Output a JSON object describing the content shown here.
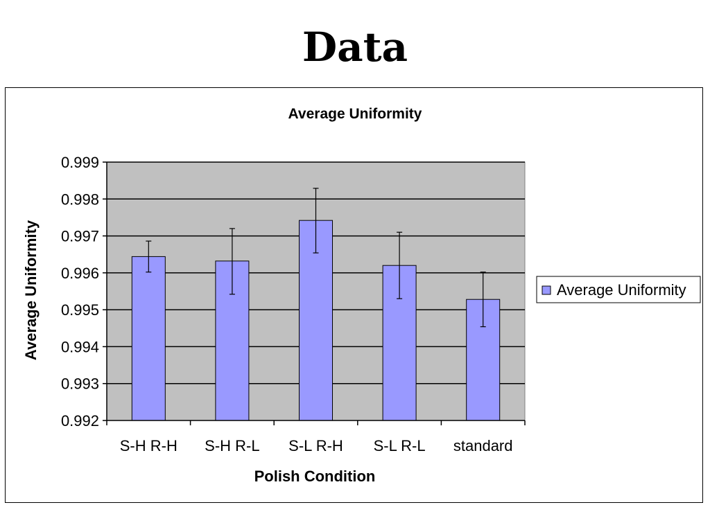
{
  "page": {
    "title": "Data"
  },
  "chart_data": {
    "type": "bar",
    "title": "Average Uniformity",
    "xlabel": "Polish Condition",
    "ylabel": "Average Uniformity",
    "categories": [
      "S-H R-H",
      "S-H R-L",
      "S-L R-H",
      "S-L R-L",
      "standard"
    ],
    "series": [
      {
        "name": "Average Uniformity",
        "values": [
          0.99644,
          0.99632,
          0.99742,
          0.9962,
          0.99528
        ],
        "error_low": [
          0.99602,
          0.99542,
          0.99654,
          0.9953,
          0.99454
        ],
        "error_high": [
          0.99686,
          0.9972,
          0.99829,
          0.9971,
          0.99602
        ],
        "color": "#9999ff"
      }
    ],
    "ylim": [
      0.992,
      0.999
    ],
    "yticks": [
      "0.992",
      "0.993",
      "0.994",
      "0.995",
      "0.996",
      "0.997",
      "0.998",
      "0.999"
    ],
    "grid": true,
    "plot_background": "#c0c0c0",
    "legend": {
      "position": "right",
      "label": "Average Uniformity"
    }
  }
}
